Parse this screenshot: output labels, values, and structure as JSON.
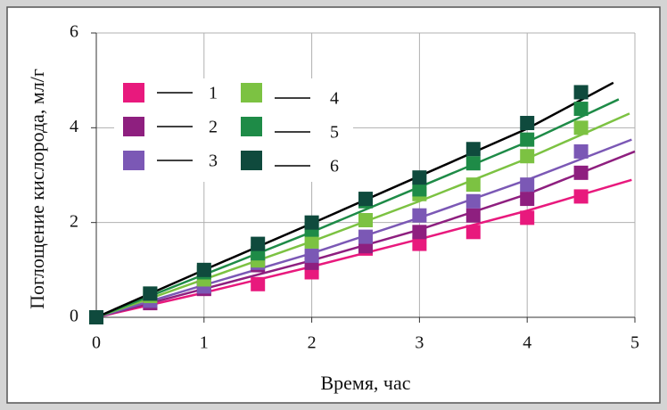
{
  "chart_data": {
    "type": "scatter",
    "xlabel": "Время, час",
    "ylabel": "Поглощение кислорода, мл/г",
    "xlim": [
      0,
      5
    ],
    "xticks": [
      0,
      1,
      2,
      3,
      4,
      5
    ],
    "ylim": [
      0,
      6
    ],
    "yticks": [
      0,
      2,
      4,
      6
    ],
    "grid": true,
    "x": [
      0,
      0.5,
      1,
      1.5,
      2,
      2.5,
      3,
      3.5,
      4,
      4.5
    ],
    "series": [
      {
        "name": "1",
        "color": "#e8197d",
        "line_color": "#e8197d",
        "values": [
          0,
          0.3,
          0.6,
          0.7,
          0.95,
          1.45,
          1.55,
          1.8,
          2.1,
          2.55
        ],
        "fit_x": [
          0,
          1,
          2,
          3,
          4,
          4.97
        ],
        "fit": [
          0,
          0.52,
          1.07,
          1.65,
          2.25,
          2.9
        ]
      },
      {
        "name": "2",
        "color": "#8e1f7f",
        "line_color": "#8e1f7f",
        "values": [
          0,
          0.3,
          0.6,
          1.1,
          1.15,
          1.5,
          1.8,
          2.15,
          2.5,
          3.05
        ],
        "fit_x": [
          0,
          1,
          2,
          3,
          4,
          5
        ],
        "fit": [
          0,
          0.6,
          1.2,
          1.85,
          2.6,
          3.5
        ]
      },
      {
        "name": "3",
        "color": "#7b58b5",
        "line_color": "#7b58b5",
        "values": [
          0,
          0.35,
          0.65,
          1.15,
          1.3,
          1.7,
          2.15,
          2.45,
          2.8,
          3.5
        ],
        "fit_x": [
          0,
          1,
          2,
          3,
          4,
          4.97
        ],
        "fit": [
          0,
          0.68,
          1.35,
          2.1,
          2.9,
          3.75
        ]
      },
      {
        "name": "4",
        "color": "#7cc242",
        "line_color": "#7cc242",
        "values": [
          0,
          0.45,
          0.8,
          1.2,
          1.6,
          2.05,
          2.6,
          2.8,
          3.4,
          4.0
        ],
        "fit_x": [
          0,
          1,
          2,
          3,
          4,
          4.95
        ],
        "fit": [
          0,
          0.8,
          1.6,
          2.45,
          3.35,
          4.3
        ]
      },
      {
        "name": "5",
        "color": "#1e8b47",
        "line_color": "#1e8b47",
        "values": [
          0,
          0.5,
          0.95,
          1.35,
          1.85,
          2.45,
          2.7,
          3.25,
          3.75,
          4.4
        ],
        "fit_x": [
          0,
          1,
          2,
          3,
          4,
          4.85
        ],
        "fit": [
          0,
          0.9,
          1.8,
          2.75,
          3.7,
          4.6
        ]
      },
      {
        "name": "6",
        "color": "#0f4a3d",
        "line_color": "#000000",
        "values": [
          0,
          0.5,
          1.0,
          1.55,
          2.0,
          2.5,
          2.95,
          3.55,
          4.1,
          4.75
        ],
        "fit_x": [
          0,
          1,
          2,
          3,
          4,
          4.8
        ],
        "fit": [
          0,
          1.0,
          1.98,
          2.98,
          3.98,
          4.95
        ]
      }
    ]
  }
}
